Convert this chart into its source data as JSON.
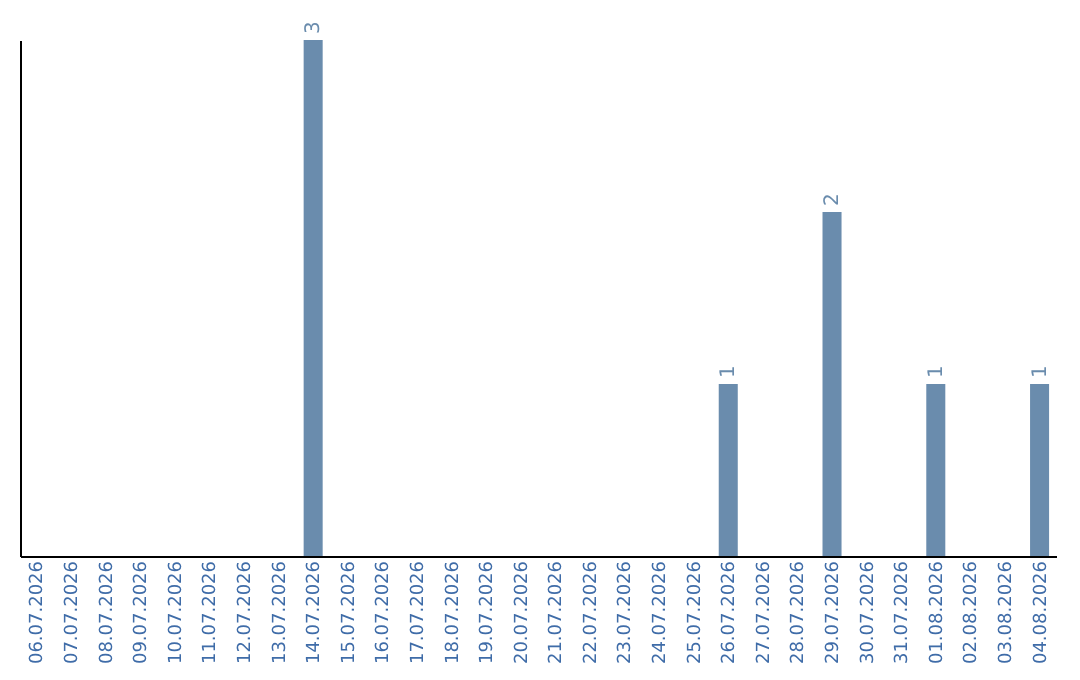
{
  "chart_data": {
    "type": "bar",
    "categories": [
      "06.07.2026",
      "07.07.2026",
      "08.07.2026",
      "09.07.2026",
      "10.07.2026",
      "11.07.2026",
      "12.07.2026",
      "13.07.2026",
      "14.07.2026",
      "15.07.2026",
      "16.07.2026",
      "17.07.2026",
      "18.07.2026",
      "19.07.2026",
      "20.07.2026",
      "21.07.2026",
      "22.07.2026",
      "23.07.2026",
      "24.07.2026",
      "25.07.2026",
      "26.07.2026",
      "27.07.2026",
      "28.07.2026",
      "29.07.2026",
      "30.07.2026",
      "31.07.2026",
      "01.08.2026",
      "02.08.2026",
      "03.08.2026",
      "04.08.2026"
    ],
    "values": [
      0,
      0,
      0,
      0,
      0,
      0,
      0,
      0,
      3,
      0,
      0,
      0,
      0,
      0,
      0,
      0,
      0,
      0,
      0,
      0,
      1,
      0,
      0,
      2,
      0,
      0,
      1,
      0,
      0,
      1
    ],
    "value_labels": [
      null,
      null,
      null,
      null,
      null,
      null,
      null,
      null,
      "3",
      null,
      null,
      null,
      null,
      null,
      null,
      null,
      null,
      null,
      null,
      null,
      "1",
      null,
      null,
      "2",
      null,
      null,
      "1",
      null,
      null,
      "1"
    ],
    "color": "#6a8cad",
    "grid": false
  }
}
